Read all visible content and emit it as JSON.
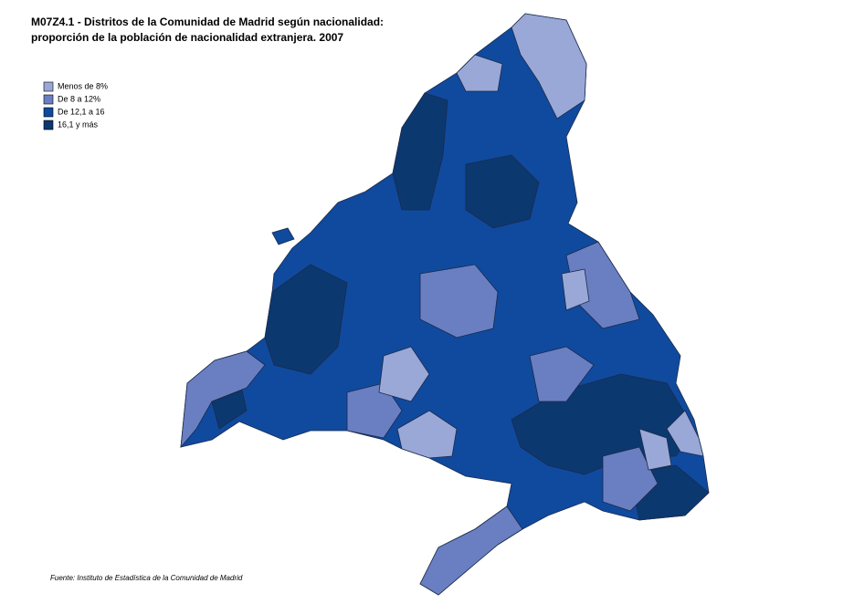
{
  "title": [
    "M07Z4.1 - Distritos de la Comunidad de Madrid según nacionalidad:",
    "proporción de la población de nacionalidad extranjera. 2007"
  ],
  "legend": [
    {
      "label": "Menos de 8%",
      "color": "#9aa8d8"
    },
    {
      "label": "De 8 a 12%",
      "color": "#6a7fc2"
    },
    {
      "label": "De 12,1 a 16",
      "color": "#0f4a9e"
    },
    {
      "label": "16,1 y más",
      "color": "#0c3870"
    }
  ],
  "source": "Fuente: Instituto de Estadística de la Comunidad de Madrid"
}
